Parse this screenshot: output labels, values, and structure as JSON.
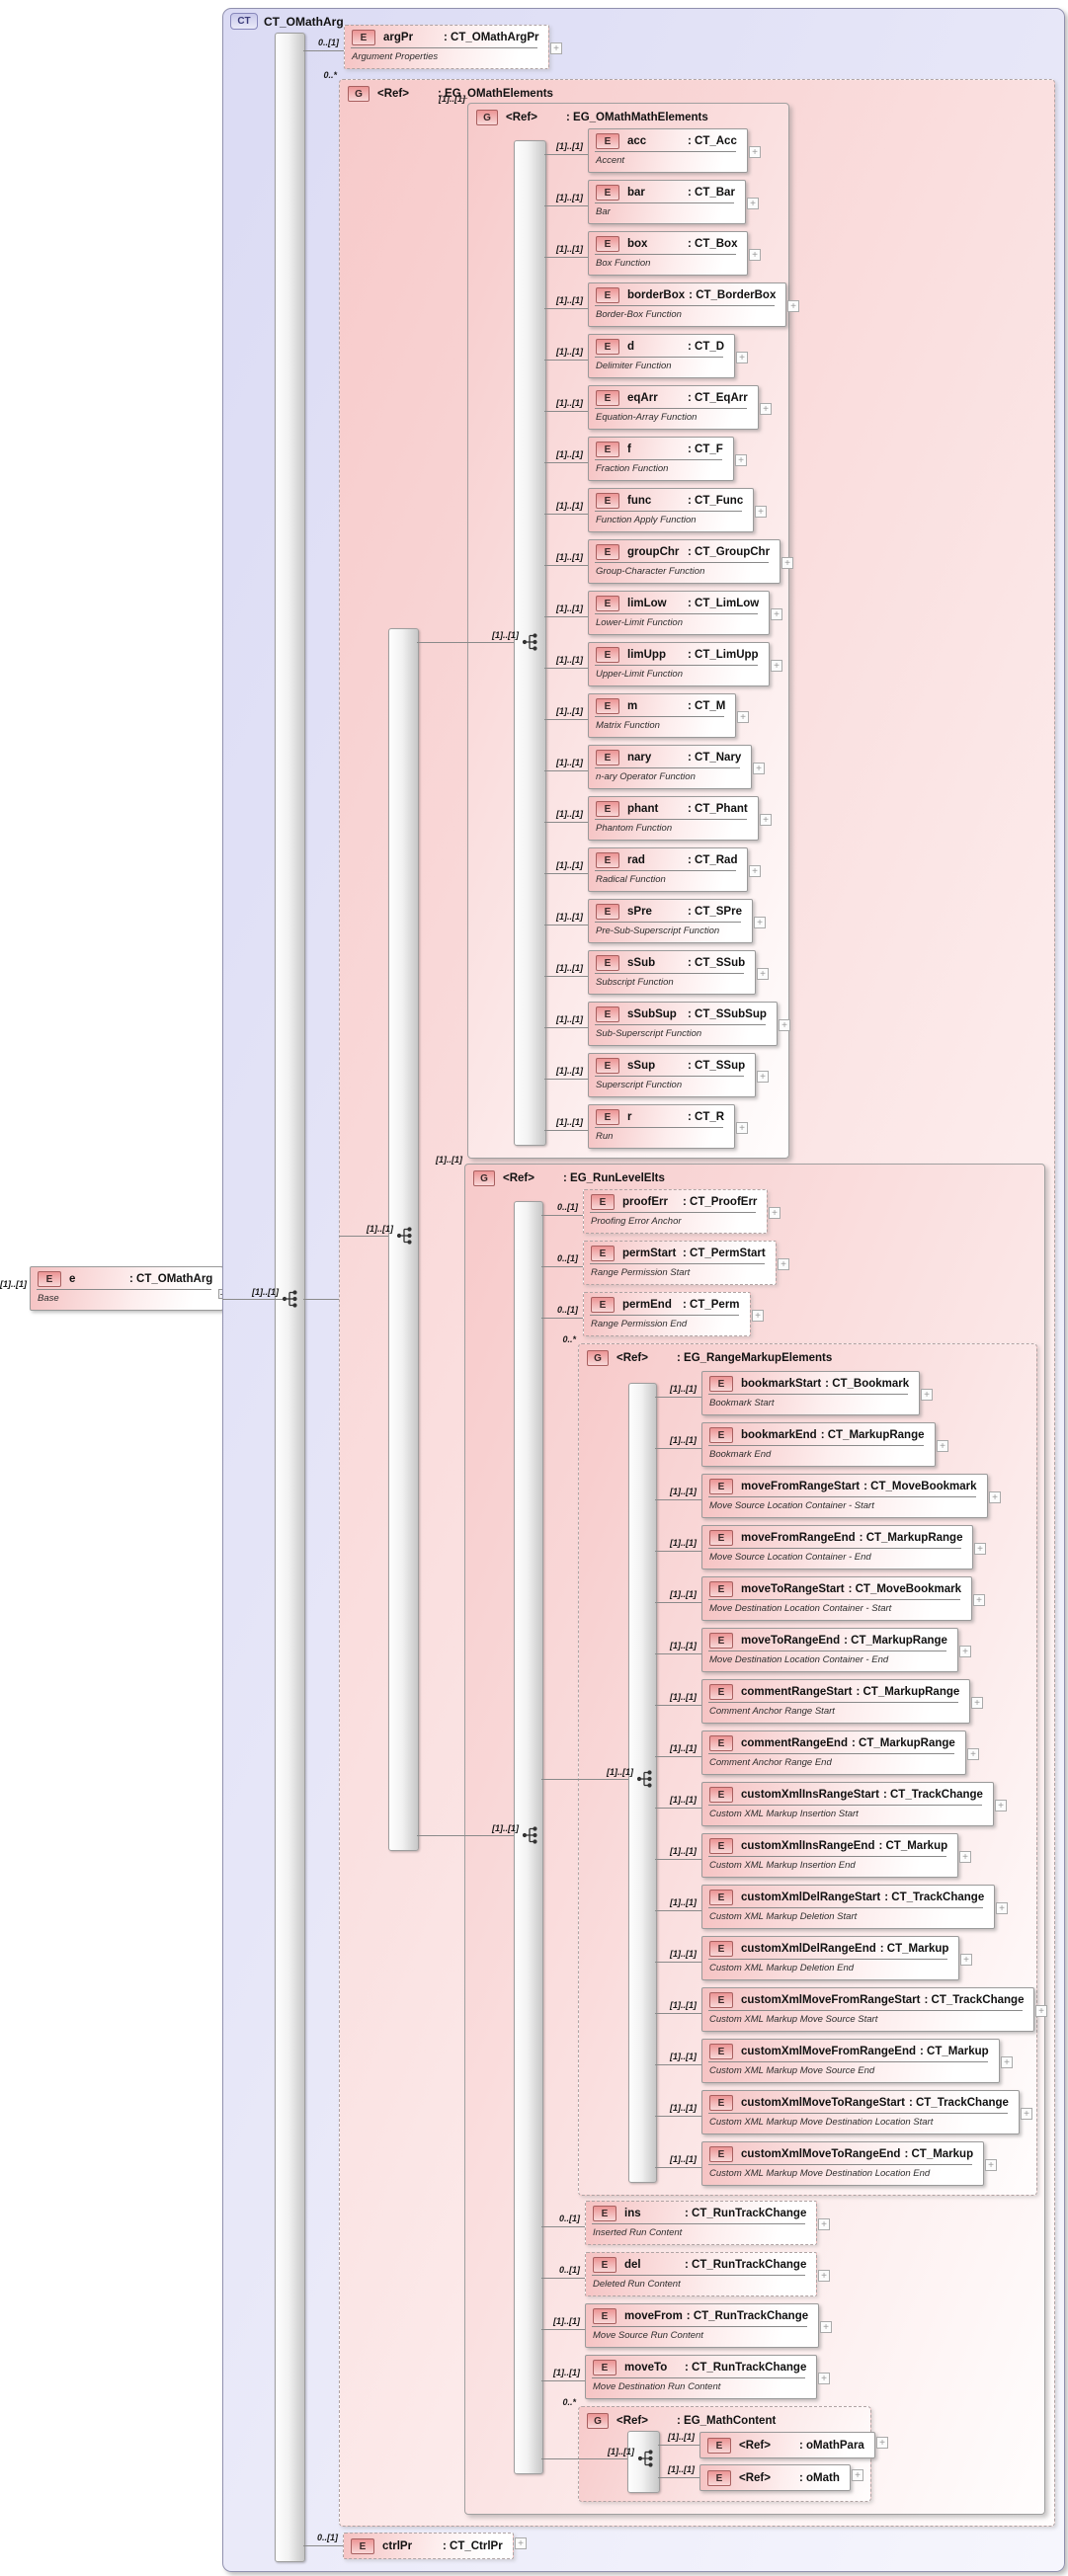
{
  "title": "CT_OMathArg",
  "badges": {
    "ct": "CT",
    "element": "E",
    "group": "G"
  },
  "icons": {
    "expand": "+"
  },
  "source_element": {
    "name": "e",
    "type": "CT_OMathArg",
    "annotation": "Base",
    "cardinality": "[1]..[1]"
  },
  "complex_type": {
    "name": "CT_OMathArg",
    "compositor_cardinality": "[1]..[1]",
    "children": [
      {
        "id": "argPr",
        "kind": "element",
        "name": "argPr",
        "type": "CT_OMathArgPr",
        "annotation": "Argument Properties",
        "cardinality": "0..[1]",
        "optional": true
      },
      {
        "id": "eg-omathelements",
        "kind": "group",
        "name": "<Ref>",
        "type": "EG_OMathElements",
        "cardinality": "0..*",
        "optional": true,
        "compositor_cardinality": "[1]..[1]",
        "children": [
          {
            "id": "eg-omathmathelements",
            "kind": "group",
            "name": "<Ref>",
            "type": "EG_OMathMathElements",
            "cardinality": "[1]..[1]",
            "compositor_cardinality": "[1]..[1]",
            "children": [
              {
                "id": "acc",
                "kind": "element",
                "name": "acc",
                "type": "CT_Acc",
                "annotation": "Accent",
                "cardinality": "[1]..[1]"
              },
              {
                "id": "bar",
                "kind": "element",
                "name": "bar",
                "type": "CT_Bar",
                "annotation": "Bar",
                "cardinality": "[1]..[1]"
              },
              {
                "id": "box",
                "kind": "element",
                "name": "box",
                "type": "CT_Box",
                "annotation": "Box Function",
                "cardinality": "[1]..[1]"
              },
              {
                "id": "borderBox",
                "kind": "element",
                "name": "borderBox",
                "type": "CT_BorderBox",
                "annotation": "Border-Box Function",
                "cardinality": "[1]..[1]"
              },
              {
                "id": "d",
                "kind": "element",
                "name": "d",
                "type": "CT_D",
                "annotation": "Delimiter Function",
                "cardinality": "[1]..[1]"
              },
              {
                "id": "eqArr",
                "kind": "element",
                "name": "eqArr",
                "type": "CT_EqArr",
                "annotation": "Equation-Array Function",
                "cardinality": "[1]..[1]"
              },
              {
                "id": "f",
                "kind": "element",
                "name": "f",
                "type": "CT_F",
                "annotation": "Fraction Function",
                "cardinality": "[1]..[1]"
              },
              {
                "id": "func",
                "kind": "element",
                "name": "func",
                "type": "CT_Func",
                "annotation": "Function Apply Function",
                "cardinality": "[1]..[1]"
              },
              {
                "id": "groupChr",
                "kind": "element",
                "name": "groupChr",
                "type": "CT_GroupChr",
                "annotation": "Group-Character Function",
                "cardinality": "[1]..[1]"
              },
              {
                "id": "limLow",
                "kind": "element",
                "name": "limLow",
                "type": "CT_LimLow",
                "annotation": "Lower-Limit Function",
                "cardinality": "[1]..[1]"
              },
              {
                "id": "limUpp",
                "kind": "element",
                "name": "limUpp",
                "type": "CT_LimUpp",
                "annotation": "Upper-Limit Function",
                "cardinality": "[1]..[1]"
              },
              {
                "id": "m",
                "kind": "element",
                "name": "m",
                "type": "CT_M",
                "annotation": "Matrix Function",
                "cardinality": "[1]..[1]"
              },
              {
                "id": "nary",
                "kind": "element",
                "name": "nary",
                "type": "CT_Nary",
                "annotation": "n-ary Operator Function",
                "cardinality": "[1]..[1]"
              },
              {
                "id": "phant",
                "kind": "element",
                "name": "phant",
                "type": "CT_Phant",
                "annotation": "Phantom Function",
                "cardinality": "[1]..[1]"
              },
              {
                "id": "rad",
                "kind": "element",
                "name": "rad",
                "type": "CT_Rad",
                "annotation": "Radical Function",
                "cardinality": "[1]..[1]"
              },
              {
                "id": "sPre",
                "kind": "element",
                "name": "sPre",
                "type": "CT_SPre",
                "annotation": "Pre-Sub-Superscript Function",
                "cardinality": "[1]..[1]"
              },
              {
                "id": "sSub",
                "kind": "element",
                "name": "sSub",
                "type": "CT_SSub",
                "annotation": "Subscript Function",
                "cardinality": "[1]..[1]"
              },
              {
                "id": "sSubSup",
                "kind": "element",
                "name": "sSubSup",
                "type": "CT_SSubSup",
                "annotation": "Sub-Superscript Function",
                "cardinality": "[1]..[1]"
              },
              {
                "id": "sSup",
                "kind": "element",
                "name": "sSup",
                "type": "CT_SSup",
                "annotation": "Superscript Function",
                "cardinality": "[1]..[1]"
              },
              {
                "id": "r",
                "kind": "element",
                "name": "r",
                "type": "CT_R",
                "annotation": "Run",
                "cardinality": "[1]..[1]"
              }
            ]
          },
          {
            "id": "eg-runlevelelts",
            "kind": "group",
            "name": "<Ref>",
            "type": "EG_RunLevelElts",
            "cardinality": "[1]..[1]",
            "compositor_cardinality": "[1]..[1]",
            "children": [
              {
                "id": "proofErr",
                "kind": "element",
                "name": "proofErr",
                "type": "CT_ProofErr",
                "annotation": "Proofing Error Anchor",
                "cardinality": "0..[1]",
                "optional": true
              },
              {
                "id": "permStart",
                "kind": "element",
                "name": "permStart",
                "type": "CT_PermStart",
                "annotation": "Range Permission Start",
                "cardinality": "0..[1]",
                "optional": true
              },
              {
                "id": "permEnd",
                "kind": "element",
                "name": "permEnd",
                "type": "CT_Perm",
                "annotation": "Range Permission End",
                "cardinality": "0..[1]",
                "optional": true
              },
              {
                "id": "eg-rangemarkupelements",
                "kind": "group",
                "name": "<Ref>",
                "type": "EG_RangeMarkupElements",
                "cardinality": "0..*",
                "optional": true,
                "compositor_cardinality": "[1]..[1]",
                "children": [
                  {
                    "id": "bookmarkStart",
                    "kind": "element",
                    "name": "bookmarkStart",
                    "type": "CT_Bookmark",
                    "annotation": "Bookmark Start",
                    "cardinality": "[1]..[1]"
                  },
                  {
                    "id": "bookmarkEnd",
                    "kind": "element",
                    "name": "bookmarkEnd",
                    "type": "CT_MarkupRange",
                    "annotation": "Bookmark End",
                    "cardinality": "[1]..[1]"
                  },
                  {
                    "id": "moveFromRangeStart",
                    "kind": "element",
                    "name": "moveFromRangeStart",
                    "type": "CT_MoveBookmark",
                    "annotation": "Move Source Location Container - Start",
                    "cardinality": "[1]..[1]"
                  },
                  {
                    "id": "moveFromRangeEnd",
                    "kind": "element",
                    "name": "moveFromRangeEnd",
                    "type": "CT_MarkupRange",
                    "annotation": "Move Source Location Container - End",
                    "cardinality": "[1]..[1]"
                  },
                  {
                    "id": "moveToRangeStart",
                    "kind": "element",
                    "name": "moveToRangeStart",
                    "type": "CT_MoveBookmark",
                    "annotation": "Move Destination Location Container - Start",
                    "cardinality": "[1]..[1]"
                  },
                  {
                    "id": "moveToRangeEnd",
                    "kind": "element",
                    "name": "moveToRangeEnd",
                    "type": "CT_MarkupRange",
                    "annotation": "Move Destination Location Container - End",
                    "cardinality": "[1]..[1]"
                  },
                  {
                    "id": "commentRangeStart",
                    "kind": "element",
                    "name": "commentRangeStart",
                    "type": "CT_MarkupRange",
                    "annotation": "Comment Anchor Range Start",
                    "cardinality": "[1]..[1]"
                  },
                  {
                    "id": "commentRangeEnd",
                    "kind": "element",
                    "name": "commentRangeEnd",
                    "type": "CT_MarkupRange",
                    "annotation": "Comment Anchor Range End",
                    "cardinality": "[1]..[1]"
                  },
                  {
                    "id": "customXmlInsRangeStart",
                    "kind": "element",
                    "name": "customXmlInsRangeStart",
                    "type": "CT_TrackChange",
                    "annotation": "Custom XML Markup Insertion Start",
                    "cardinality": "[1]..[1]"
                  },
                  {
                    "id": "customXmlInsRangeEnd",
                    "kind": "element",
                    "name": "customXmlInsRangeEnd",
                    "type": "CT_Markup",
                    "annotation": "Custom XML Markup Insertion End",
                    "cardinality": "[1]..[1]"
                  },
                  {
                    "id": "customXmlDelRangeStart",
                    "kind": "element",
                    "name": "customXmlDelRangeStart",
                    "type": "CT_TrackChange",
                    "annotation": "Custom XML Markup Deletion Start",
                    "cardinality": "[1]..[1]"
                  },
                  {
                    "id": "customXmlDelRangeEnd",
                    "kind": "element",
                    "name": "customXmlDelRangeEnd",
                    "type": "CT_Markup",
                    "annotation": "Custom XML Markup Deletion End",
                    "cardinality": "[1]..[1]"
                  },
                  {
                    "id": "customXmlMoveFromRangeStart",
                    "kind": "element",
                    "name": "customXmlMoveFromRangeStart",
                    "type": "CT_TrackChange",
                    "annotation": "Custom XML Markup Move Source Start",
                    "cardinality": "[1]..[1]"
                  },
                  {
                    "id": "customXmlMoveFromRangeEnd",
                    "kind": "element",
                    "name": "customXmlMoveFromRangeEnd",
                    "type": "CT_Markup",
                    "annotation": "Custom XML Markup Move Source End",
                    "cardinality": "[1]..[1]"
                  },
                  {
                    "id": "customXmlMoveToRangeStart",
                    "kind": "element",
                    "name": "customXmlMoveToRangeStart",
                    "type": "CT_TrackChange",
                    "annotation": "Custom XML Markup Move Destination Location Start",
                    "cardinality": "[1]..[1]"
                  },
                  {
                    "id": "customXmlMoveToRangeEnd",
                    "kind": "element",
                    "name": "customXmlMoveToRangeEnd",
                    "type": "CT_Markup",
                    "annotation": "Custom XML Markup Move Destination Location End",
                    "cardinality": "[1]..[1]"
                  }
                ]
              },
              {
                "id": "ins",
                "kind": "element",
                "name": "ins",
                "type": "CT_RunTrackChange",
                "annotation": "Inserted Run Content",
                "cardinality": "0..[1]",
                "optional": true
              },
              {
                "id": "del",
                "kind": "element",
                "name": "del",
                "type": "CT_RunTrackChange",
                "annotation": "Deleted Run Content",
                "cardinality": "0..[1]",
                "optional": true
              },
              {
                "id": "moveFrom",
                "kind": "element",
                "name": "moveFrom",
                "type": "CT_RunTrackChange",
                "annotation": "Move Source Run Content",
                "cardinality": "[1]..[1]"
              },
              {
                "id": "moveTo",
                "kind": "element",
                "name": "moveTo",
                "type": "CT_RunTrackChange",
                "annotation": "Move Destination Run Content",
                "cardinality": "[1]..[1]"
              },
              {
                "id": "eg-mathcontent",
                "kind": "group",
                "name": "<Ref>",
                "type": "EG_MathContent",
                "cardinality": "0..*",
                "optional": true,
                "compositor_cardinality": "[1]..[1]",
                "children": [
                  {
                    "id": "oMathPara",
                    "kind": "element",
                    "name": "<Ref>",
                    "type": "oMathPara",
                    "cardinality": "[1]..[1]",
                    "single_row": true
                  },
                  {
                    "id": "oMath",
                    "kind": "element",
                    "name": "<Ref>",
                    "type": "oMath",
                    "cardinality": "[1]..[1]",
                    "single_row": true
                  }
                ]
              }
            ]
          }
        ]
      },
      {
        "id": "ctrlPr",
        "kind": "element",
        "name": "ctrlPr",
        "type": "CT_CtrlPr",
        "annotation": "",
        "cardinality": "0..[1]",
        "optional": true,
        "single_row": true
      }
    ]
  }
}
